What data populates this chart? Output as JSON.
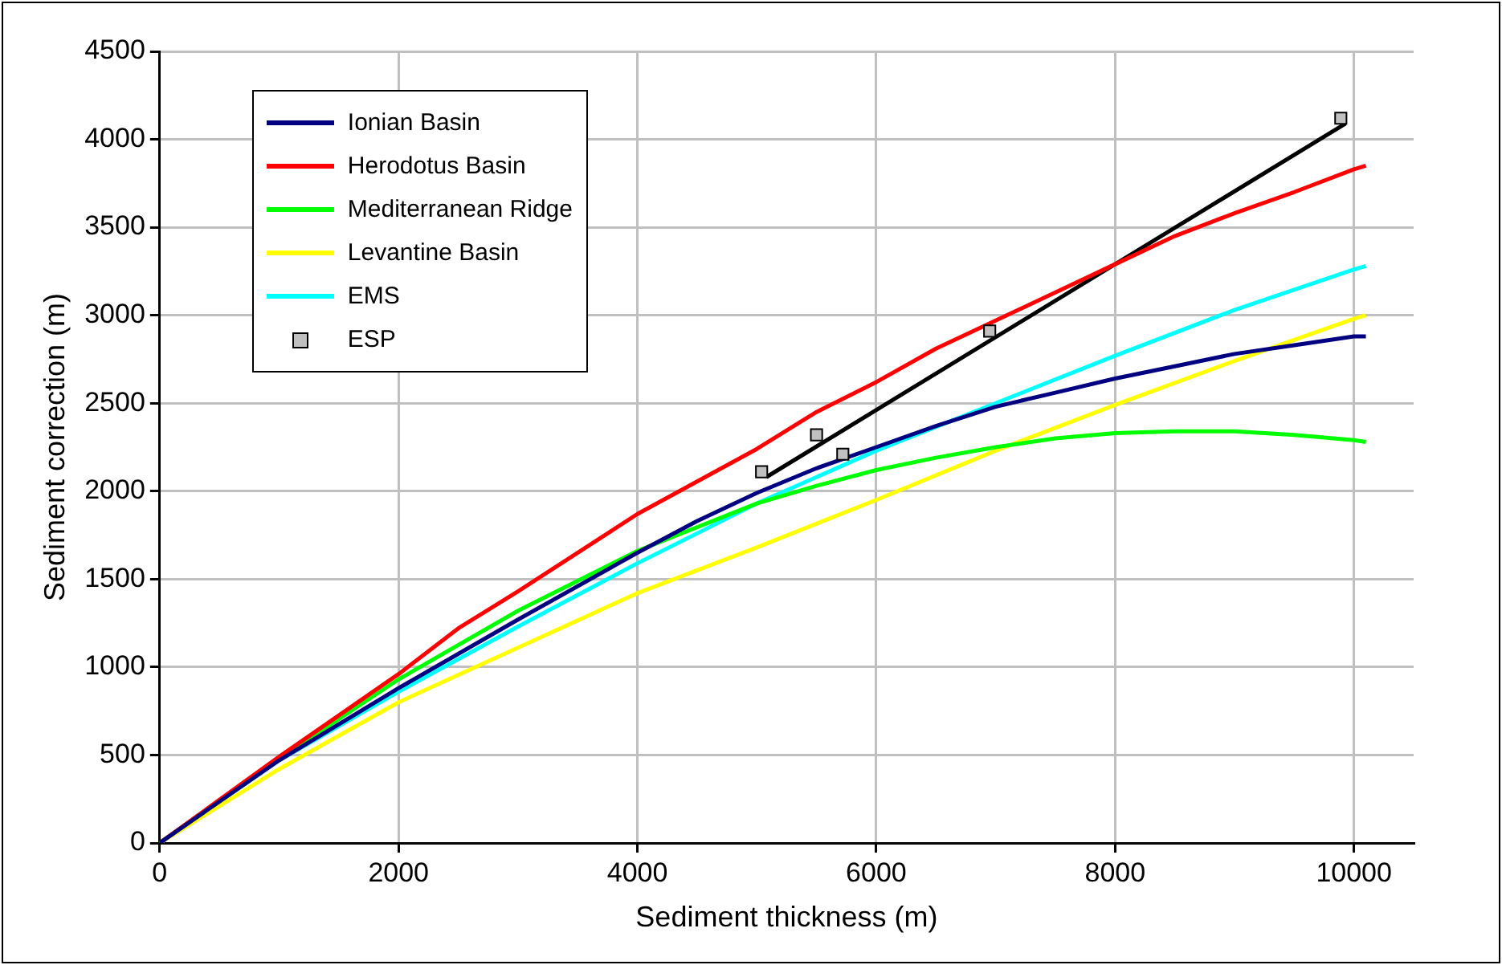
{
  "chart_data": {
    "type": "line",
    "xlabel": "Sediment thickness (m)",
    "ylabel": "Sediment correction (m)",
    "xlim": [
      0,
      10500
    ],
    "xticks": [
      0,
      2000,
      4000,
      6000,
      8000,
      10000
    ],
    "ylim": [
      0,
      4500
    ],
    "yticks": [
      0,
      500,
      1000,
      1500,
      2000,
      2500,
      3000,
      3500,
      4000,
      4500
    ],
    "grid": true,
    "legend": "top left",
    "marker": "none",
    "line_style": "solid",
    "series": [
      {
        "name": "Ionian Basin",
        "color": "#000080",
        "x": [
          0,
          1000,
          2000,
          3000,
          4000,
          4500,
          5000,
          5500,
          6000,
          6500,
          7000,
          7500,
          8000,
          8500,
          9000,
          9500,
          10000,
          10100
        ],
        "values": [
          0,
          470,
          880,
          1270,
          1650,
          1830,
          1990,
          2130,
          2250,
          2370,
          2480,
          2560,
          2640,
          2710,
          2780,
          2830,
          2880,
          2880
        ]
      },
      {
        "name": "Herodotus Basin",
        "color": "#ff0000",
        "x": [
          0,
          1000,
          2000,
          2500,
          3000,
          4000,
          5000,
          5500,
          6000,
          6500,
          7000,
          7500,
          8000,
          8500,
          9000,
          9500,
          10000,
          10100
        ],
        "values": [
          0,
          490,
          960,
          1220,
          1430,
          1870,
          2240,
          2450,
          2620,
          2810,
          2970,
          3130,
          3290,
          3450,
          3580,
          3700,
          3830,
          3850
        ]
      },
      {
        "name": "Mediterranean Ridge",
        "color": "#00ff00",
        "x": [
          0,
          1000,
          2000,
          3000,
          4000,
          5000,
          5500,
          6000,
          6500,
          7000,
          7500,
          8000,
          8500,
          9000,
          9500,
          10000,
          10100
        ],
        "values": [
          0,
          480,
          930,
          1320,
          1660,
          1930,
          2030,
          2120,
          2190,
          2250,
          2300,
          2330,
          2340,
          2340,
          2320,
          2290,
          2280
        ]
      },
      {
        "name": "Levantine Basin",
        "color": "#ffff00",
        "x": [
          0,
          1000,
          2000,
          3000,
          4000,
          5000,
          6000,
          7000,
          8000,
          9000,
          10000,
          10100
        ],
        "values": [
          0,
          420,
          800,
          1110,
          1420,
          1680,
          1950,
          2230,
          2490,
          2740,
          2980,
          3000
        ]
      },
      {
        "name": "EMS",
        "color": "#00ffff",
        "x": [
          0,
          1000,
          2000,
          3000,
          4000,
          5000,
          6000,
          7000,
          8000,
          9000,
          10000,
          10100
        ],
        "values": [
          0,
          470,
          860,
          1230,
          1590,
          1930,
          2230,
          2500,
          2770,
          3030,
          3260,
          3280
        ]
      },
      {
        "name": "ESP",
        "type": "scatter",
        "marker": "square",
        "color": "#c0c0c0",
        "x": [
          5040,
          5500,
          5720,
          6950,
          9890
        ],
        "values": [
          2110,
          2320,
          2210,
          2910,
          4120
        ]
      },
      {
        "type": "line",
        "color": "#000000",
        "x": [
          5080,
          9930
        ],
        "values": [
          2080,
          4090
        ]
      }
    ]
  }
}
